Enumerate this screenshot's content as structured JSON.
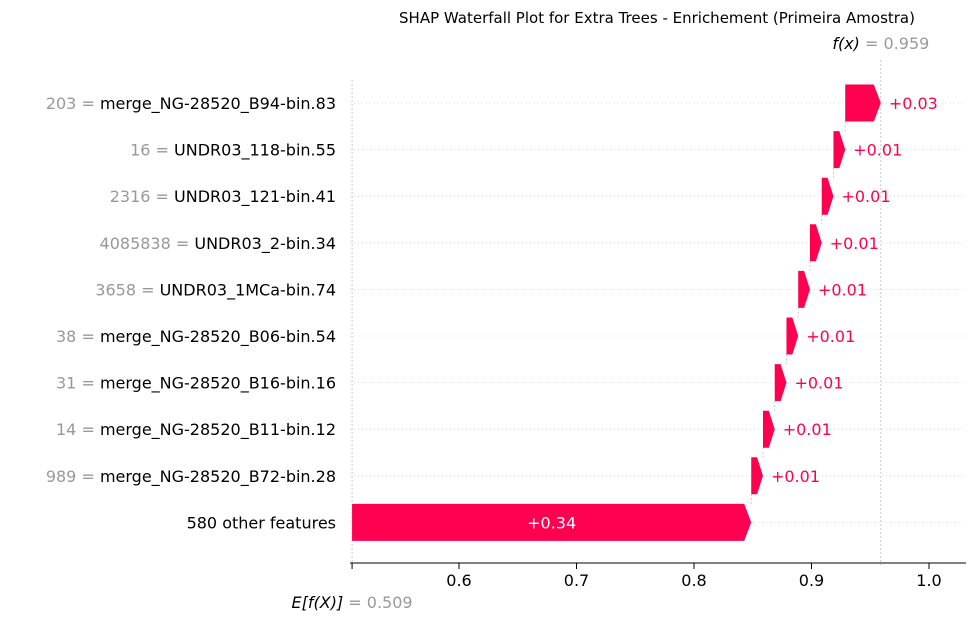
{
  "chart_data": {
    "type": "waterfall",
    "title": "SHAP Waterfall Plot for Extra Trees - Enrichement (Primeira Amostra)",
    "fx": {
      "label": "f(x)",
      "value_text": "= 0.959",
      "value": 0.959
    },
    "base": {
      "label": "E[f(X)]",
      "value_text": "= 0.509",
      "value": 0.509
    },
    "xlim": [
      0.5,
      1.03
    ],
    "x_ticks": [
      {
        "value": 0.6,
        "label": "0.6"
      },
      {
        "value": 0.7,
        "label": "0.7"
      },
      {
        "value": 0.8,
        "label": "0.8"
      },
      {
        "value": 0.9,
        "label": "0.9"
      },
      {
        "value": 1.0,
        "label": "1.0"
      }
    ],
    "features": [
      {
        "value": "203",
        "name": "merge_NG-28520_B94-bin.83",
        "start": 0.9287,
        "end": 0.959,
        "label": "+0.03"
      },
      {
        "value": "16",
        "name": "UNDR03_118-bin.55",
        "start": 0.9187,
        "end": 0.9287,
        "label": "+0.01"
      },
      {
        "value": "2316",
        "name": "UNDR03_121-bin.41",
        "start": 0.9087,
        "end": 0.9187,
        "label": "+0.01"
      },
      {
        "value": "4085838",
        "name": "UNDR03_2-bin.34",
        "start": 0.8987,
        "end": 0.9087,
        "label": "+0.01"
      },
      {
        "value": "3658",
        "name": "UNDR03_1MCa-bin.74",
        "start": 0.8887,
        "end": 0.8987,
        "label": "+0.01"
      },
      {
        "value": "38",
        "name": "merge_NG-28520_B06-bin.54",
        "start": 0.8787,
        "end": 0.8887,
        "label": "+0.01"
      },
      {
        "value": "31",
        "name": "merge_NG-28520_B16-bin.16",
        "start": 0.8687,
        "end": 0.8787,
        "label": "+0.01"
      },
      {
        "value": "14",
        "name": "merge_NG-28520_B11-bin.12",
        "start": 0.8587,
        "end": 0.8687,
        "label": "+0.01"
      },
      {
        "value": "989",
        "name": "merge_NG-28520_B72-bin.28",
        "start": 0.8487,
        "end": 0.8587,
        "label": "+0.01"
      },
      {
        "value": "",
        "name": "580 other features",
        "start": 0.509,
        "end": 0.8487,
        "label": "+0.34"
      }
    ],
    "colors": {
      "positive": "#ff0051",
      "value_gray": "#999999",
      "text": "#000000"
    }
  }
}
